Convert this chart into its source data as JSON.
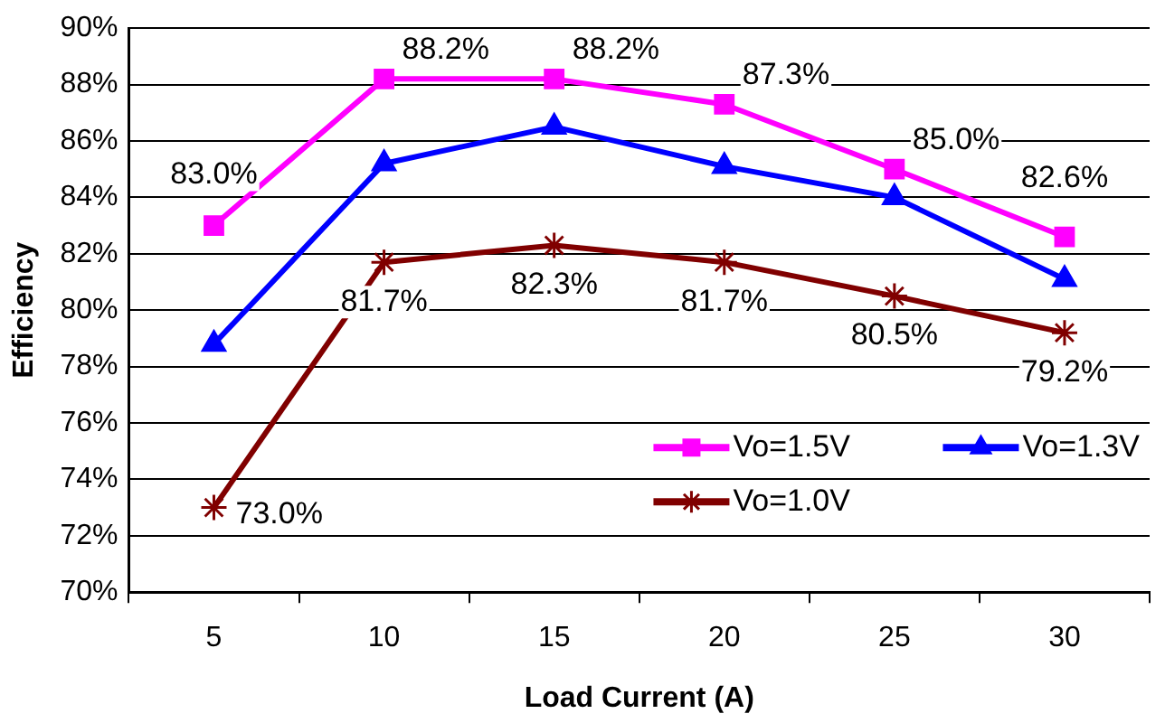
{
  "chart_data": {
    "type": "line",
    "xlabel": "Load Current (A)",
    "ylabel": "Efficiency",
    "categories": [
      "5",
      "10",
      "15",
      "20",
      "25",
      "30"
    ],
    "ylim": [
      70,
      90
    ],
    "yticks": [
      {
        "value": 70,
        "label": "70%"
      },
      {
        "value": 72,
        "label": "72%"
      },
      {
        "value": 74,
        "label": "74%"
      },
      {
        "value": 76,
        "label": "76%"
      },
      {
        "value": 78,
        "label": "78%"
      },
      {
        "value": 80,
        "label": "80%"
      },
      {
        "value": 82,
        "label": "82%"
      },
      {
        "value": 84,
        "label": "84%"
      },
      {
        "value": 86,
        "label": "86%"
      },
      {
        "value": 88,
        "label": "88%"
      },
      {
        "value": 90,
        "label": "90%"
      }
    ],
    "grid": "y",
    "legend": "bottom right",
    "series": [
      {
        "name": "Vo=1.5V",
        "color": "#ff00ff",
        "marker": "square",
        "values": [
          83.0,
          88.2,
          88.2,
          87.3,
          85.0,
          82.6
        ],
        "value_labels": [
          "83.0%",
          "88.2%",
          "88.2%",
          "87.3%",
          "85.0%",
          "82.6%"
        ]
      },
      {
        "name": "Vo=1.3V",
        "color": "#0000ff",
        "marker": "triangle",
        "values": [
          78.8,
          85.2,
          86.5,
          85.1,
          84.0,
          81.1
        ]
      },
      {
        "name": "Vo=1.0V",
        "color": "#800000",
        "marker": "cross",
        "values": [
          73.0,
          81.7,
          82.3,
          81.7,
          80.5,
          79.2
        ],
        "value_labels": [
          "73.0%",
          "81.7%",
          "82.3%",
          "81.7%",
          "80.5%",
          "79.2%"
        ]
      }
    ]
  }
}
